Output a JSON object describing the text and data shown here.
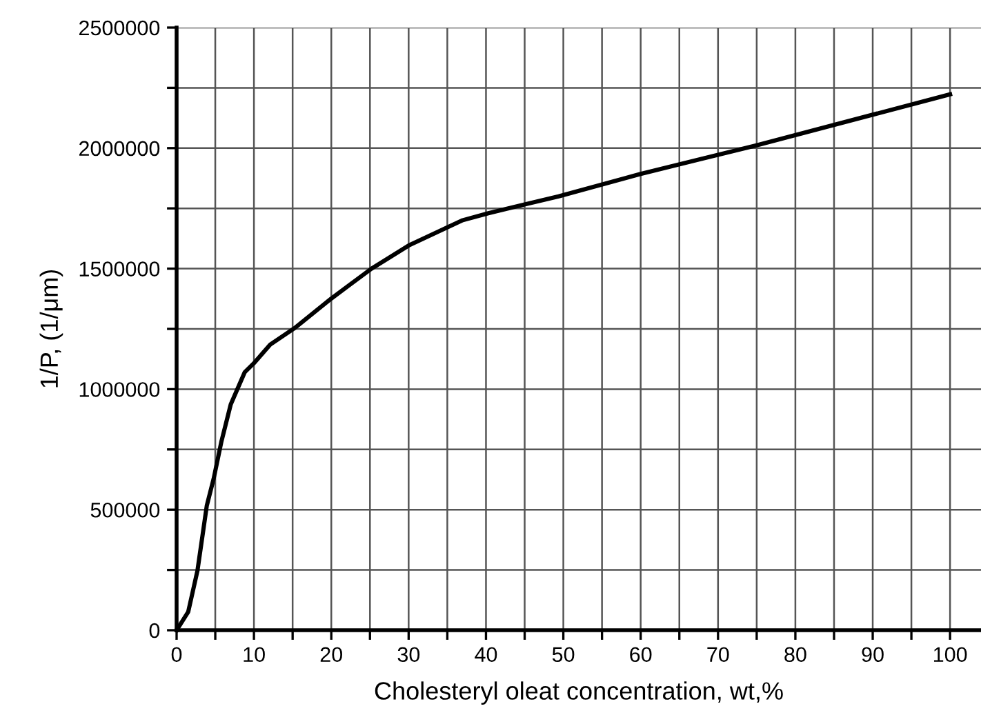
{
  "chart_data": {
    "type": "line",
    "xlabel": "Cholesteryl oleat concentration, wt,%",
    "ylabel": "1/P, (1/μm)",
    "x": [
      0,
      1.5,
      2.7,
      3.9,
      4.8,
      5.8,
      7.0,
      8.8,
      10,
      12.1,
      15.2,
      20,
      25.2,
      30,
      37,
      40.3,
      49.4,
      59.9,
      74.9,
      100
    ],
    "series": [
      {
        "color": "#000000",
        "values": [
          0,
          76000,
          248000,
          516000,
          630000,
          784000,
          937000,
          1070000,
          1108000,
          1185000,
          1252000,
          1376000,
          1500000,
          1596000,
          1701000,
          1730000,
          1800000,
          1892000,
          2011000,
          2223000
        ]
      }
    ],
    "xlim": [
      0,
      104
    ],
    "ylim": [
      0,
      2500000
    ],
    "xticks": [
      0,
      {
        "value": 5,
        "label": null
      },
      10,
      {
        "value": 15,
        "label": null
      },
      20,
      {
        "value": 25,
        "label": null
      },
      30,
      {
        "value": 35,
        "label": null
      },
      40,
      {
        "value": 45,
        "label": null
      },
      50,
      {
        "value": 55,
        "label": null
      },
      60,
      {
        "value": 65,
        "label": null
      },
      70,
      {
        "value": 75,
        "label": null
      },
      80,
      {
        "value": 85,
        "label": null
      },
      90,
      {
        "value": 95,
        "label": null
      },
      100
    ],
    "yticks": [
      0,
      {
        "value": 250000,
        "label": null
      },
      500000,
      {
        "value": 750000,
        "label": null
      },
      1000000,
      {
        "value": 1250000,
        "label": null
      },
      1500000,
      {
        "value": 1750000,
        "label": null
      },
      2000000,
      {
        "value": 2250000,
        "label": null
      },
      2500000
    ],
    "grid": true,
    "marker": "none",
    "line_style": "solid"
  }
}
